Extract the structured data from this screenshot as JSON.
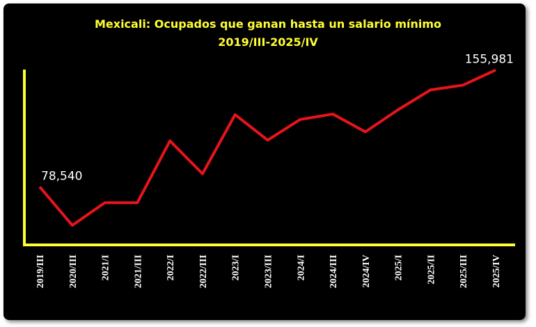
{
  "chart_data": {
    "type": "line",
    "title": [
      "Mexicali: Ocupados que ganan hasta un salario mínimo",
      "2019/III-2025/IV"
    ],
    "categories": [
      "2019/III",
      "2020/III",
      "2021/I",
      "2021/III",
      "2022/I",
      "2022/III",
      "2023/I",
      "2023/III",
      "2024/I",
      "2024/III",
      "2024/IV",
      "2025/I",
      "2025/II",
      "2025/III",
      "2025/IV"
    ],
    "values": [
      78540,
      53000,
      68000,
      68000,
      109000,
      87200,
      126400,
      109500,
      123200,
      126800,
      115000,
      129600,
      142800,
      146000,
      155981
    ],
    "value_labels": [
      "78,540",
      null,
      null,
      null,
      null,
      null,
      null,
      null,
      null,
      null,
      null,
      null,
      null,
      null,
      "155,981"
    ],
    "color": "#e8141b",
    "axis_color": "#ffff33",
    "ylim": [
      40000,
      160000
    ]
  }
}
